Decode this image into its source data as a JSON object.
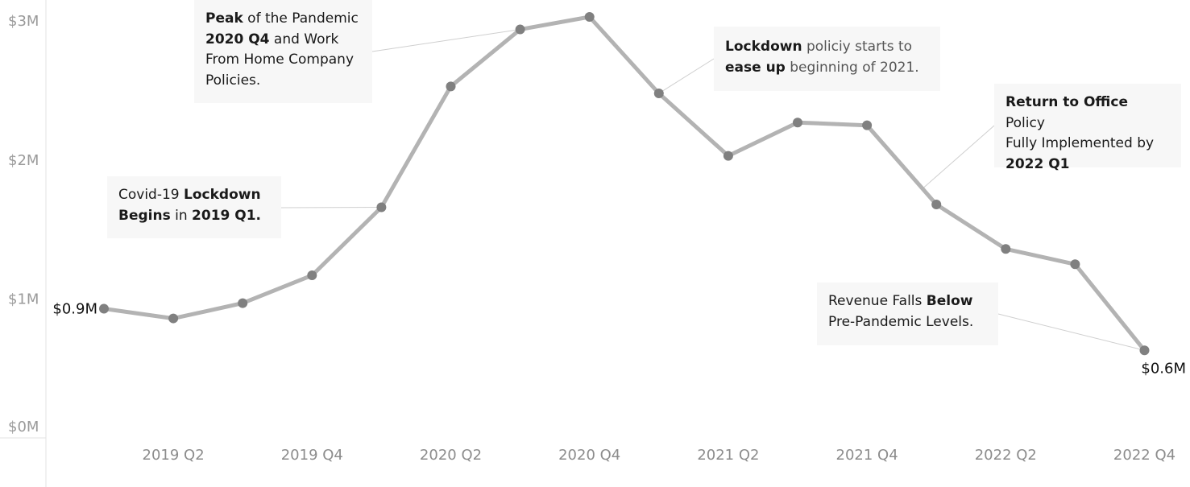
{
  "chart_data": {
    "type": "line",
    "x": [
      "2019 Q1",
      "2019 Q2",
      "2019 Q3",
      "2019 Q4",
      "2020 Q1",
      "2020 Q2",
      "2020 Q3",
      "2020 Q4",
      "2021 Q1",
      "2021 Q2",
      "2021 Q3",
      "2021 Q4",
      "2022 Q1",
      "2022 Q2",
      "2022 Q3",
      "2022 Q4"
    ],
    "series": [
      {
        "values": [
          0.93,
          0.86,
          0.97,
          1.17,
          1.66,
          2.53,
          2.94,
          3.03,
          2.48,
          2.03,
          2.27,
          2.25,
          1.68,
          1.36,
          1.25,
          0.63
        ]
      }
    ],
    "ylim": [
      0,
      3.1
    ],
    "y_ticks": [
      {
        "value": 0,
        "label": "$0M"
      },
      {
        "value": 1,
        "label": "$1M"
      },
      {
        "value": 2,
        "label": "$2M"
      },
      {
        "value": 3,
        "label": "$3M"
      }
    ],
    "x_tick_labels": [
      "2019 Q2",
      "2019 Q4",
      "2020 Q2",
      "2020 Q4",
      "2021 Q2",
      "2021 Q4",
      "2022 Q2",
      "2022 Q4"
    ],
    "data_labels": [
      {
        "index": 0,
        "label": "$0.9M"
      },
      {
        "index": 15,
        "label": "$0.6M"
      }
    ],
    "grid": false,
    "line_color": "#b3b3b3",
    "marker_color": "#808080",
    "annotations": [
      {
        "id": "covid-lockdown-annotation",
        "target_index": 4,
        "parts": [
          {
            "text": "Covid-19 ",
            "bold": false
          },
          {
            "text": "Lockdown",
            "bold": true
          },
          {
            "text": "\n",
            "bold": false
          },
          {
            "text": "Begins",
            "bold": true
          },
          {
            "text": " in ",
            "bold": false
          },
          {
            "text": "2019 Q1.",
            "bold": true
          }
        ]
      },
      {
        "id": "peak-pandemic-annotation",
        "target_index": 6,
        "parts": [
          {
            "text": "Peak",
            "bold": true
          },
          {
            "text": " of the Pandemic\n",
            "bold": false
          },
          {
            "text": "2020 Q4",
            "bold": true
          },
          {
            "text": " and Work\nFrom Home Company\nPolicies.",
            "bold": false
          }
        ]
      },
      {
        "id": "lockdown-ease-annotation",
        "target_index": 8,
        "parts": [
          {
            "text": "Lockdown",
            "bold": true
          },
          {
            "text": " policiy starts to\n",
            "bold": false
          },
          {
            "text": "ease up",
            "bold": true
          },
          {
            "text": " beginning of  2021.",
            "bold": false
          }
        ]
      },
      {
        "id": "return-to-office-annotation",
        "target_index": 11.8,
        "parts": [
          {
            "text": "Return to Office",
            "bold": true
          },
          {
            "text": " Policy\nFully Implemented by\n",
            "bold": false
          },
          {
            "text": "2022 Q1",
            "bold": true
          }
        ]
      },
      {
        "id": "revenue-falls-annotation",
        "target_index": 15,
        "parts": [
          {
            "text": "Revenue Falls ",
            "bold": false
          },
          {
            "text": "Below",
            "bold": true
          },
          {
            "text": "\nPre-Pandemic Levels.",
            "bold": false
          }
        ]
      }
    ]
  }
}
